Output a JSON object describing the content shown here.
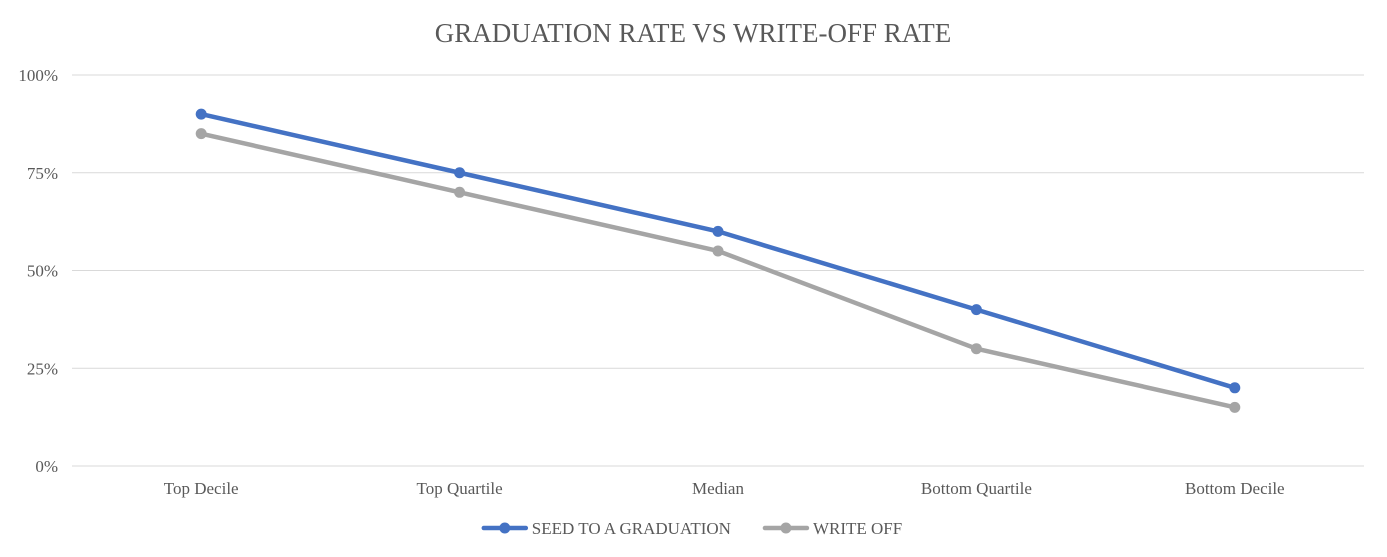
{
  "chart_data": {
    "type": "line",
    "title": "GRADUATION RATE VS WRITE-OFF RATE",
    "xlabel": "",
    "ylabel": "",
    "categories": [
      "Top Decile",
      "Top Quartile",
      "Median",
      "Bottom Quartile",
      "Bottom Decile"
    ],
    "y_ticks": [
      0,
      25,
      50,
      75,
      100
    ],
    "y_tick_labels": [
      "0%",
      "25%",
      "50%",
      "75%",
      "100%"
    ],
    "ylim": [
      0,
      100
    ],
    "grid": true,
    "legend_position": "bottom",
    "series": [
      {
        "name": "SEED TO A GRADUATION",
        "color": "#4472c4",
        "values": [
          90,
          75,
          60,
          40,
          20
        ]
      },
      {
        "name": "WRITE OFF",
        "color": "#a5a5a5",
        "values": [
          85,
          70,
          55,
          30,
          15
        ]
      }
    ]
  }
}
